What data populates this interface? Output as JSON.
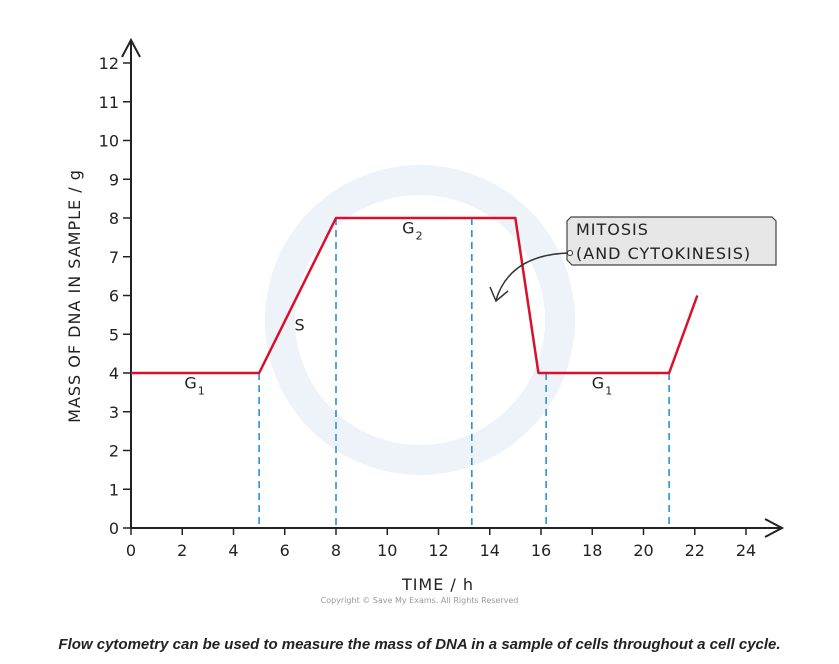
{
  "chart_data": {
    "type": "line",
    "xlabel": "TIME / h",
    "ylabel": "MASS OF DNA IN SAMPLE / g",
    "xlim": [
      0,
      24
    ],
    "ylim": [
      0,
      12
    ],
    "x_ticks": [
      0,
      2,
      4,
      6,
      8,
      10,
      12,
      14,
      16,
      18,
      20,
      22,
      24
    ],
    "y_ticks": [
      0,
      1,
      2,
      3,
      4,
      5,
      6,
      7,
      8,
      9,
      10,
      11,
      12
    ],
    "grid": false,
    "series": [
      {
        "x": [
          0,
          5,
          8,
          15,
          15.9,
          21,
          22.1
        ],
        "y": [
          4,
          4,
          8,
          8,
          4,
          4,
          6
        ],
        "color": "#d9102b"
      }
    ],
    "phase_boundaries": [
      5,
      8,
      13.3,
      16.2,
      21
    ],
    "phase_line_color": "#2b8fd6",
    "phase_labels": [
      {
        "text": "G",
        "sub": "1",
        "x": 2.5,
        "y": 3.6
      },
      {
        "text": "S",
        "sub": "",
        "x": 6.6,
        "y": 5.1
      },
      {
        "text": "G",
        "sub": "2",
        "x": 11,
        "y": 7.6
      },
      {
        "text": "G",
        "sub": "1",
        "x": 18.4,
        "y": 3.6
      }
    ],
    "annotation": {
      "line1": "MITOSIS",
      "line2": "(AND CYTOKINESIS)"
    }
  },
  "copyright": "Copyright © Save My Exams. All Rights Reserved",
  "caption": "Flow cytometry can be used to measure the mass of DNA in a sample of cells throughout a cell cycle."
}
